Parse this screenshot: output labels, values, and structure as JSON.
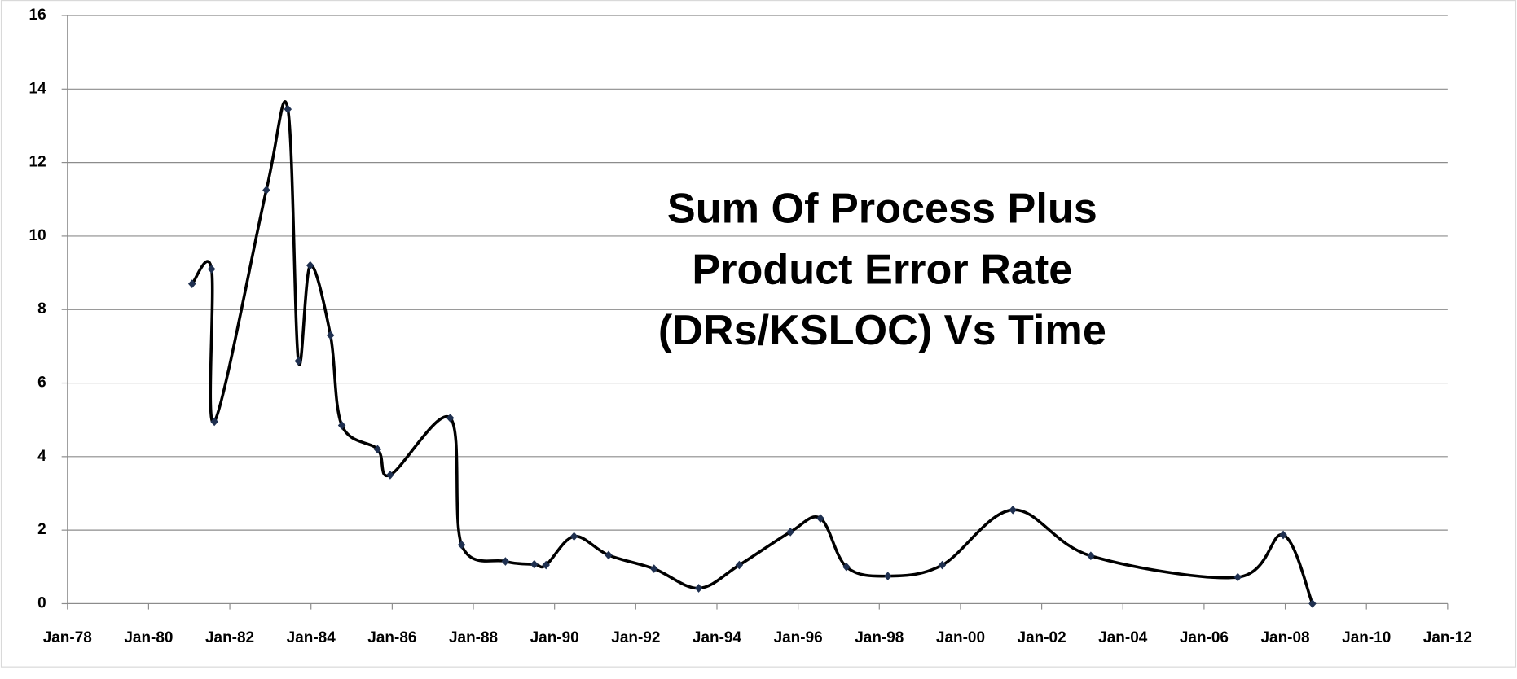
{
  "chart_data": {
    "type": "line",
    "title": [
      "Sum Of Process Plus",
      "Product Error Rate",
      "(DRs/KSLOC) Vs Time"
    ],
    "x": [
      1981.07,
      1981.55,
      1981.62,
      1982.9,
      1983.43,
      1983.69,
      1983.98,
      1984.48,
      1984.76,
      1985.64,
      1985.95,
      1987.43,
      1987.71,
      1988.79,
      1989.5,
      1989.79,
      1990.48,
      1991.33,
      1992.45,
      1993.55,
      1994.55,
      1995.81,
      1996.55,
      1997.19,
      1998.21,
      1999.55,
      2001.29,
      2003.21,
      2006.83,
      2007.95,
      2008.67
    ],
    "values": [
      8.7,
      9.1,
      4.95,
      11.25,
      13.45,
      6.6,
      9.2,
      7.3,
      4.85,
      4.2,
      3.5,
      5.05,
      1.6,
      1.15,
      1.07,
      1.05,
      1.83,
      1.32,
      0.95,
      0.42,
      1.05,
      1.95,
      2.32,
      1.0,
      0.75,
      1.05,
      2.55,
      1.3,
      0.72,
      1.87,
      0
    ],
    "color": "#000000",
    "marker_color": "#1f3050",
    "xlim": [
      1978,
      2012
    ],
    "xticks": [
      {
        "value": 1978,
        "label": "Jan-78"
      },
      {
        "value": 1980,
        "label": "Jan-80"
      },
      {
        "value": 1982,
        "label": "Jan-82"
      },
      {
        "value": 1984,
        "label": "Jan-84"
      },
      {
        "value": 1986,
        "label": "Jan-86"
      },
      {
        "value": 1988,
        "label": "Jan-88"
      },
      {
        "value": 1990,
        "label": "Jan-90"
      },
      {
        "value": 1992,
        "label": "Jan-92"
      },
      {
        "value": 1994,
        "label": "Jan-94"
      },
      {
        "value": 1996,
        "label": "Jan-96"
      },
      {
        "value": 1998,
        "label": "Jan-98"
      },
      {
        "value": 2000,
        "label": "Jan-00"
      },
      {
        "value": 2002,
        "label": "Jan-02"
      },
      {
        "value": 2004,
        "label": "Jan-04"
      },
      {
        "value": 2006,
        "label": "Jan-06"
      },
      {
        "value": 2008,
        "label": "Jan-08"
      },
      {
        "value": 2010,
        "label": "Jan-10"
      },
      {
        "value": 2012,
        "label": "Jan-12"
      }
    ],
    "ylim": [
      0,
      16
    ],
    "yticks": [
      0,
      2,
      4,
      6,
      8,
      10,
      12,
      14,
      16
    ],
    "grid": true,
    "smooth": true
  }
}
